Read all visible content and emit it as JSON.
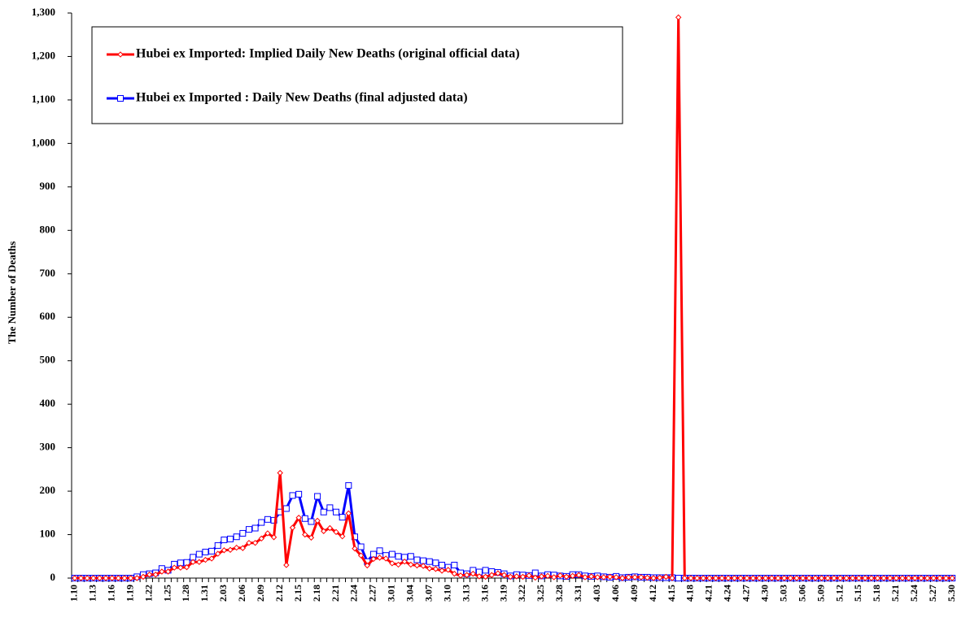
{
  "chart_data": {
    "type": "line",
    "y_label": "The Number of Deaths",
    "categories": [
      "1.10",
      null,
      null,
      "1.13",
      null,
      null,
      "1.16",
      null,
      null,
      "1.19",
      null,
      null,
      "1.22",
      null,
      null,
      "1.25",
      null,
      null,
      "1.28",
      null,
      null,
      "1.31",
      null,
      null,
      "2.03",
      null,
      null,
      "2.06",
      null,
      null,
      "2.09",
      null,
      null,
      "2.12",
      null,
      null,
      "2.15",
      null,
      null,
      "2.18",
      null,
      null,
      "2.21",
      null,
      null,
      "2.24",
      null,
      null,
      "2.27",
      null,
      null,
      "3.01",
      null,
      null,
      "3.04",
      null,
      null,
      "3.07",
      null,
      null,
      "3.10",
      null,
      null,
      "3.13",
      null,
      null,
      "3.16",
      null,
      null,
      "3.19",
      null,
      null,
      "3.22",
      null,
      null,
      "3.25",
      null,
      null,
      "3.28",
      null,
      null,
      "3.31",
      null,
      null,
      "4.03",
      null,
      null,
      "4.06",
      null,
      null,
      "4.09",
      null,
      null,
      "4.12",
      null,
      null,
      "4.15",
      null,
      null,
      "4.18",
      null,
      null,
      "4.21",
      null,
      null,
      "4.24",
      null,
      null,
      "4.27",
      null,
      null,
      "4.30",
      null,
      null,
      "5.03",
      null,
      null,
      "5.06",
      null,
      null,
      "5.09",
      null,
      null,
      "5.12",
      null,
      null,
      "5.15",
      null,
      null,
      "5.18",
      null,
      null,
      "5.21",
      null,
      null,
      "5.24",
      null,
      null,
      "5.27",
      null,
      null,
      "5.30"
    ],
    "series": [
      {
        "name": "Hubei ex Imported: Implied Daily New Deaths (original official data)",
        "color": "#ff0000",
        "marker": "diamond",
        "values": [
          0,
          0,
          0,
          0,
          0,
          0,
          0,
          0,
          0,
          0,
          0,
          3,
          8,
          8,
          15,
          15,
          24,
          24,
          25,
          37,
          37,
          42,
          45,
          56,
          64,
          65,
          70,
          69,
          81,
          81,
          91,
          103,
          94,
          242,
          30,
          116,
          139,
          100,
          93,
          132,
          108,
          115,
          106,
          96,
          149,
          68,
          52,
          29,
          44,
          47,
          45,
          34,
          31,
          38,
          31,
          29,
          28,
          22,
          21,
          17,
          19,
          10,
          6,
          7,
          10,
          4,
          3,
          7,
          11,
          7,
          3,
          4,
          3,
          6,
          1,
          4,
          5,
          2,
          6,
          3,
          5,
          7,
          2,
          4,
          2,
          2,
          3,
          2,
          0,
          2,
          2,
          2,
          1,
          0,
          1,
          3,
          0,
          1290,
          0,
          0,
          0,
          0,
          0,
          0,
          0,
          0,
          0,
          0,
          0,
          0,
          0,
          0,
          0,
          0,
          0,
          0,
          0,
          0,
          0,
          0,
          0,
          0,
          0,
          0,
          0,
          0,
          0,
          0,
          0,
          0,
          0,
          0,
          0,
          0,
          0,
          0,
          0,
          0,
          0,
          0,
          0,
          0
        ]
      },
      {
        "name": "Hubei ex Imported : Daily New Deaths (final adjusted data)",
        "color": "#0000ff",
        "marker": "square",
        "values": [
          0,
          0,
          0,
          0,
          0,
          0,
          0,
          0,
          0,
          0,
          3,
          8,
          10,
          12,
          22,
          18,
          32,
          35,
          36,
          48,
          55,
          60,
          62,
          75,
          88,
          90,
          95,
          103,
          112,
          115,
          128,
          135,
          133,
          152,
          160,
          190,
          193,
          137,
          130,
          188,
          152,
          162,
          152,
          140,
          213,
          95,
          72,
          38,
          55,
          63,
          52,
          55,
          50,
          48,
          50,
          42,
          40,
          38,
          35,
          30,
          25,
          30,
          12,
          10,
          18,
          14,
          18,
          15,
          13,
          10,
          5,
          8,
          7,
          6,
          12,
          5,
          8,
          7,
          5,
          4,
          8,
          8,
          5,
          4,
          5,
          3,
          2,
          4,
          1,
          2,
          3,
          2,
          2,
          1,
          1,
          1,
          1,
          0,
          0,
          0,
          0,
          0,
          0,
          0,
          0,
          0,
          0,
          0,
          0,
          0,
          0,
          0,
          0,
          0,
          0,
          0,
          0,
          0,
          0,
          0,
          0,
          0,
          0,
          0,
          0,
          0,
          0,
          0,
          0,
          0,
          0,
          0,
          0,
          0,
          0,
          0,
          0,
          0,
          0,
          0,
          0,
          0
        ]
      }
    ],
    "ylim": [
      0,
      1300
    ],
    "yticks": [
      0,
      100,
      200,
      300,
      400,
      500,
      600,
      700,
      800,
      900,
      {
        "value": 1000,
        "label": "1,000"
      },
      {
        "value": 1100,
        "label": "1,100"
      },
      {
        "value": 1200,
        "label": "1,200"
      },
      {
        "value": 1300,
        "label": "1,300"
      }
    ],
    "legend": "upper left",
    "grid": false
  }
}
